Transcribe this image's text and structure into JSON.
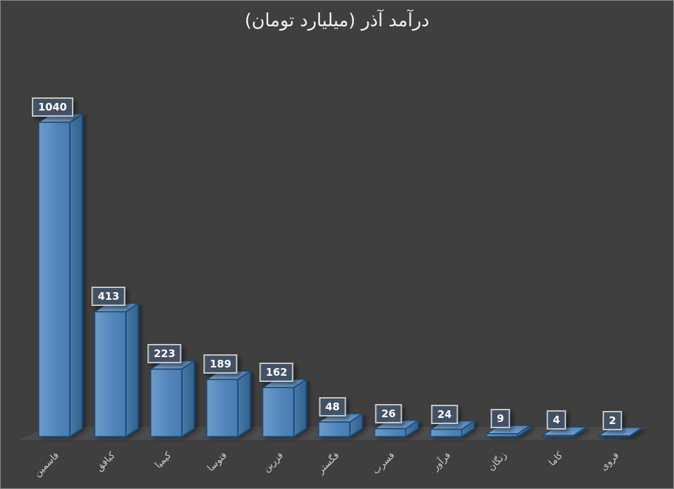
{
  "window": {
    "background": "#3f3f3f",
    "border_color": "#8a8a8a"
  },
  "chart_data": {
    "type": "bar",
    "projection": "3d",
    "title": "درآمد آذر (میلیارد تومان)",
    "title_translation": "Azar income (billion toman)",
    "categories": [
      "فاسمین",
      "کبافق",
      "کیمیا",
      "فتوسا",
      "فزرین",
      "فگستر",
      "فسرب",
      "فرآور",
      "زنگان",
      "کاما",
      "فروی"
    ],
    "values": [
      1040,
      413,
      223,
      189,
      162,
      48,
      26,
      24,
      9,
      4,
      2
    ],
    "data_labels": [
      "1040",
      "413",
      "223",
      "189",
      "162",
      "48",
      "26",
      "24",
      "9",
      "4",
      "2"
    ],
    "ylim": [
      0,
      1100
    ],
    "grid": false,
    "legend": false,
    "axis_ticks": "none",
    "category_label_rotation_deg": -45,
    "colors": {
      "bar_front_light": "#6d9cca",
      "bar_front": "#5387bc",
      "bar_front_dark": "#4a7cb1",
      "bar_side_light": "#4577a8",
      "bar_side_dark": "#34618c",
      "bar_top_light": "#8cb2d9",
      "bar_top_dark": "#4b7eb2",
      "bar_outline": "#1c4a75",
      "label_box_bg": "#44546a",
      "label_box_border": "#c9c9c9",
      "label_text": "#ffffff",
      "category_text": "#cfcfcf",
      "title_text": "#f2f2f2",
      "floor": "#4b4b4b",
      "background": "#3f3f3f"
    }
  }
}
